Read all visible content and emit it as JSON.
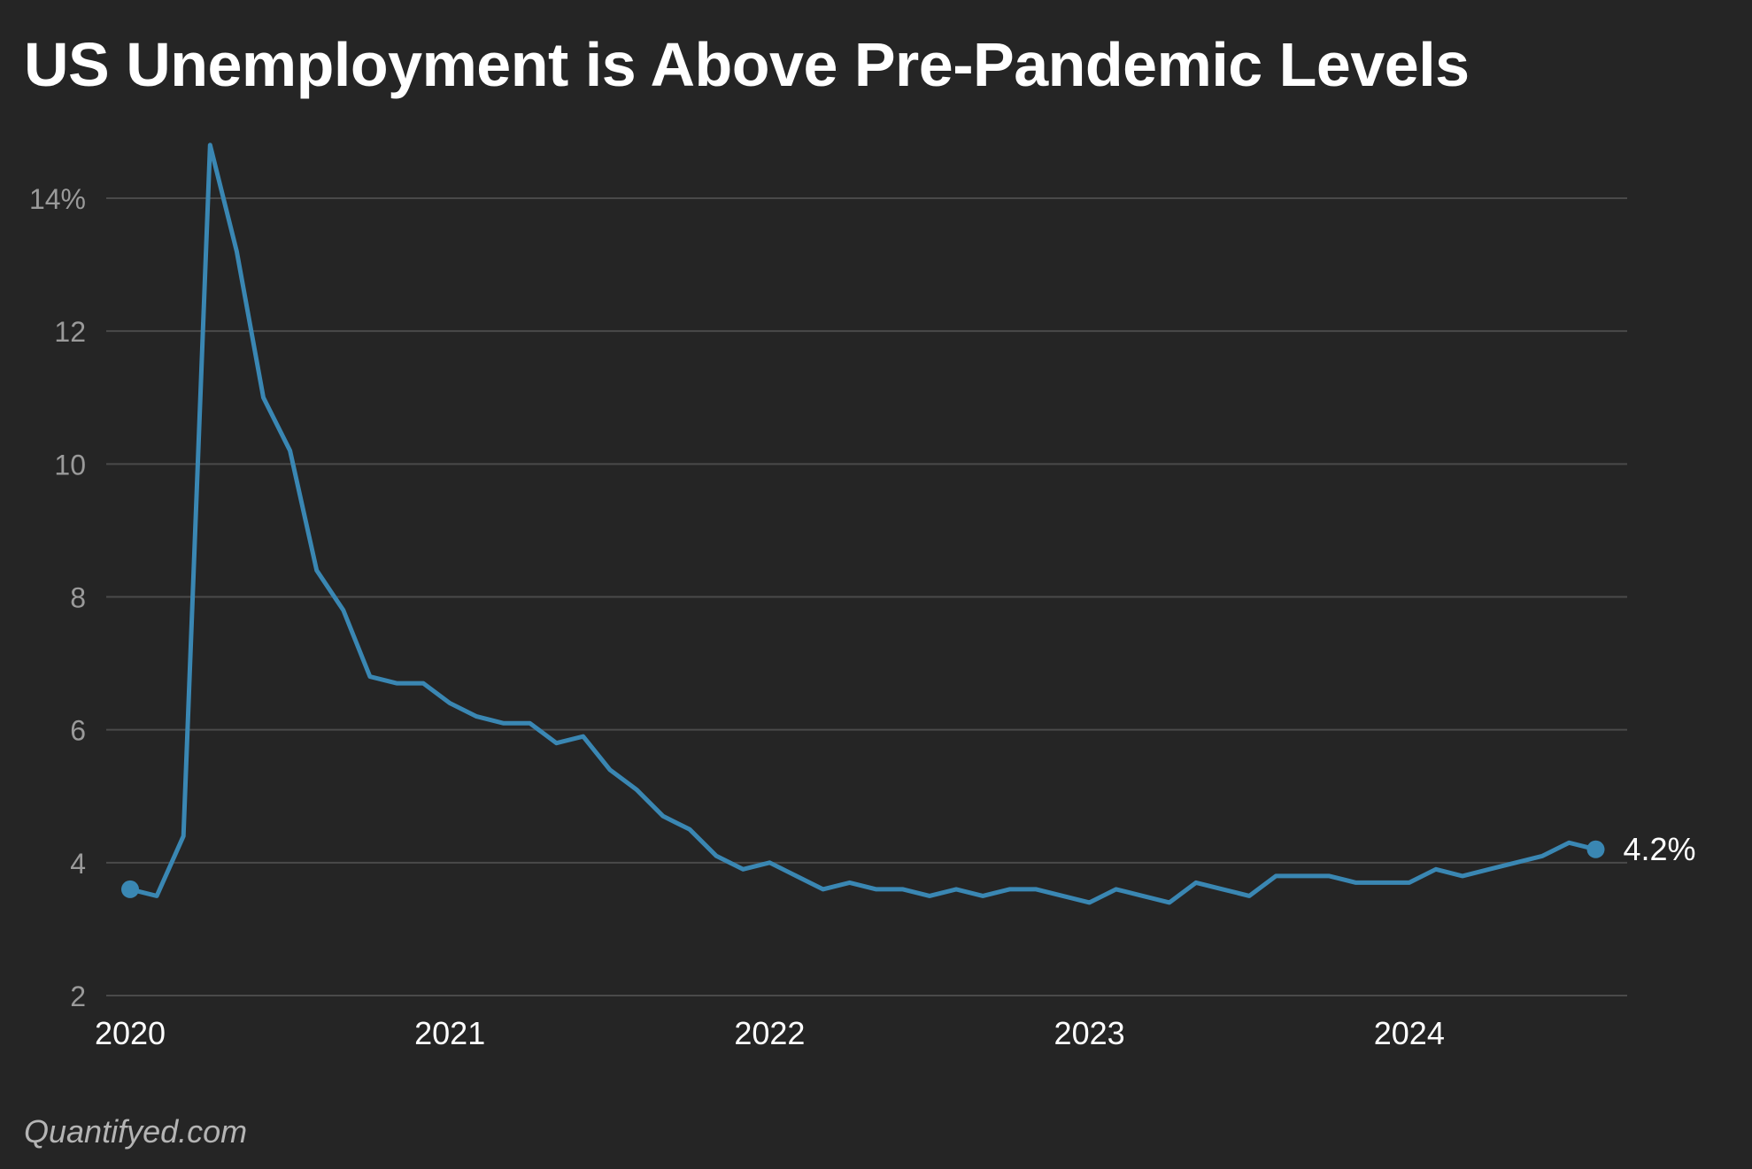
{
  "title": "US Unemployment is Above Pre-Pandemic Levels",
  "source": "Quantifyed.com",
  "chart_data": {
    "type": "line",
    "title": "US Unemployment is Above Pre-Pandemic Levels",
    "xlabel": "",
    "ylabel": "",
    "ylim": [
      2,
      14.8
    ],
    "yticks": [
      2,
      4,
      6,
      8,
      10,
      12,
      14
    ],
    "ytick_labels": [
      "2",
      "4",
      "6",
      "8",
      "10",
      "12",
      "14%"
    ],
    "xlim": [
      "2020-01",
      "2024-08"
    ],
    "xticks": [
      "2020-01",
      "2021-01",
      "2022-01",
      "2023-01",
      "2024-01"
    ],
    "xtick_labels": [
      "2020",
      "2021",
      "2022",
      "2023",
      "2024"
    ],
    "grid": true,
    "line_color": "#3a87b3",
    "end_label": "4.2%",
    "x": [
      "2020-01",
      "2020-02",
      "2020-03",
      "2020-04",
      "2020-05",
      "2020-06",
      "2020-07",
      "2020-08",
      "2020-09",
      "2020-10",
      "2020-11",
      "2020-12",
      "2021-01",
      "2021-02",
      "2021-03",
      "2021-04",
      "2021-05",
      "2021-06",
      "2021-07",
      "2021-08",
      "2021-09",
      "2021-10",
      "2021-11",
      "2021-12",
      "2022-01",
      "2022-02",
      "2022-03",
      "2022-04",
      "2022-05",
      "2022-06",
      "2022-07",
      "2022-08",
      "2022-09",
      "2022-10",
      "2022-11",
      "2022-12",
      "2023-01",
      "2023-02",
      "2023-03",
      "2023-04",
      "2023-05",
      "2023-06",
      "2023-07",
      "2023-08",
      "2023-09",
      "2023-10",
      "2023-11",
      "2023-12",
      "2024-01",
      "2024-02",
      "2024-03",
      "2024-04",
      "2024-05",
      "2024-06",
      "2024-07",
      "2024-08"
    ],
    "values": [
      3.6,
      3.5,
      4.4,
      14.8,
      13.2,
      11.0,
      10.2,
      8.4,
      7.8,
      6.8,
      6.7,
      6.7,
      6.4,
      6.2,
      6.1,
      6.1,
      5.8,
      5.9,
      5.4,
      5.1,
      4.7,
      4.5,
      4.1,
      3.9,
      4.0,
      3.8,
      3.6,
      3.7,
      3.6,
      3.6,
      3.5,
      3.6,
      3.5,
      3.6,
      3.6,
      3.5,
      3.4,
      3.6,
      3.5,
      3.4,
      3.7,
      3.6,
      3.5,
      3.8,
      3.8,
      3.8,
      3.7,
      3.7,
      3.7,
      3.9,
      3.8,
      3.9,
      4.0,
      4.1,
      4.3,
      4.2
    ],
    "markers": "first-and-last"
  }
}
